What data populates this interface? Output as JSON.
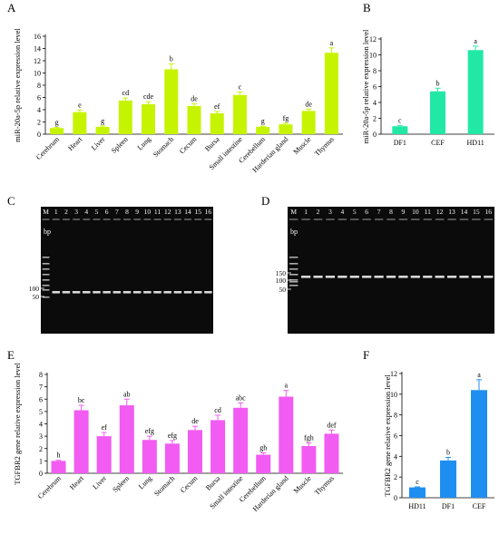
{
  "colors": {
    "panel_a": "#c6f400",
    "panel_b": "#22e8a6",
    "panel_e": "#f25cf2",
    "panel_f": "#1e8ff0",
    "gel_bg": "#0b0b0b",
    "gel_band": "#d8d8d8"
  },
  "chart_data": [
    {
      "panel": "A",
      "type": "bar",
      "ylabel": "miR-20a-5p relative expression level",
      "ylim": [
        0,
        16
      ],
      "yticks": [
        "0",
        "2",
        "4",
        "6",
        "8",
        "10",
        "12",
        "14",
        "16"
      ],
      "categories": [
        "Cerebrum",
        "Heart",
        "Liver",
        "Spleen",
        "Lung",
        "Stomach",
        "Cecum",
        "Bursa",
        "Small intestine",
        "Cerebellum",
        "Harderian gland",
        "Muscle",
        "Thymus"
      ],
      "values": [
        1.0,
        3.6,
        1.2,
        5.5,
        4.9,
        10.6,
        4.6,
        3.4,
        6.4,
        1.2,
        1.6,
        3.8,
        13.3
      ],
      "errors": [
        0.1,
        0.35,
        0.15,
        0.4,
        0.4,
        0.9,
        0.35,
        0.3,
        0.5,
        0.1,
        0.2,
        0.3,
        0.8
      ],
      "letters": [
        "g",
        "e",
        "g",
        "cd",
        "cde",
        "b",
        "de",
        "ef",
        "c",
        "g",
        "fg",
        "de",
        "a"
      ]
    },
    {
      "panel": "B",
      "type": "bar",
      "ylabel": "miR-20a-5p relative expression level",
      "ylim": [
        0,
        12
      ],
      "yticks": [
        "0",
        "2",
        "4",
        "6",
        "8",
        "10",
        "12"
      ],
      "categories": [
        "DF1",
        "CEF",
        "HD11"
      ],
      "values": [
        1.0,
        5.4,
        10.6
      ],
      "errors": [
        0.1,
        0.4,
        0.5
      ],
      "letters": [
        "c",
        "b",
        "a"
      ]
    },
    {
      "panel": "E",
      "type": "bar",
      "ylabel": "TGFBR2 gene relative expression level",
      "ylim": [
        0,
        8
      ],
      "yticks": [
        "0",
        "1",
        "2",
        "3",
        "4",
        "5",
        "6",
        "7",
        "8"
      ],
      "categories": [
        "Cerebrum",
        "Heart",
        "Liver",
        "Spleen",
        "Lung",
        "Stomach",
        "Cecum",
        "Bursa",
        "Small intestine",
        "Cerebellum",
        "Harderian gland",
        "Muscle",
        "Thymus"
      ],
      "values": [
        1.0,
        5.1,
        3.0,
        5.5,
        2.7,
        2.4,
        3.5,
        4.3,
        5.3,
        1.5,
        6.2,
        2.2,
        3.2
      ],
      "errors": [
        0.05,
        0.4,
        0.3,
        0.5,
        0.3,
        0.25,
        0.3,
        0.4,
        0.4,
        0.15,
        0.5,
        0.25,
        0.3
      ],
      "letters": [
        "h",
        "bc",
        "ef",
        "ab",
        "efg",
        "efg",
        "de",
        "cd",
        "abc",
        "gh",
        "a",
        "fgh",
        "def"
      ]
    },
    {
      "panel": "F",
      "type": "bar",
      "ylabel": "TGFBR2  gene relative expression level",
      "ylim": [
        0,
        12
      ],
      "yticks": [
        "0",
        "2",
        "4",
        "6",
        "8",
        "10",
        "12"
      ],
      "categories": [
        "HD11",
        "DF1",
        "CEF"
      ],
      "values": [
        1.0,
        3.6,
        10.4
      ],
      "errors": [
        0.05,
        0.3,
        1.0
      ],
      "letters": [
        "c",
        "b",
        "a"
      ]
    }
  ],
  "gels": [
    {
      "panel": "C",
      "lane_labels": [
        "M",
        "1",
        "2",
        "3",
        "4",
        "5",
        "6",
        "7",
        "8",
        "9",
        "10",
        "11",
        "12",
        "13",
        "14",
        "15",
        "16"
      ],
      "bp_label": "bp",
      "size_labels": [
        "100",
        "50"
      ]
    },
    {
      "panel": "D",
      "lane_labels": [
        "M",
        "1",
        "2",
        "3",
        "4",
        "5",
        "6",
        "7",
        "8",
        "9",
        "10",
        "11",
        "12",
        "13",
        "14",
        "15",
        "16"
      ],
      "bp_label": "bp",
      "size_labels": [
        "150",
        "100",
        "50"
      ]
    }
  ]
}
